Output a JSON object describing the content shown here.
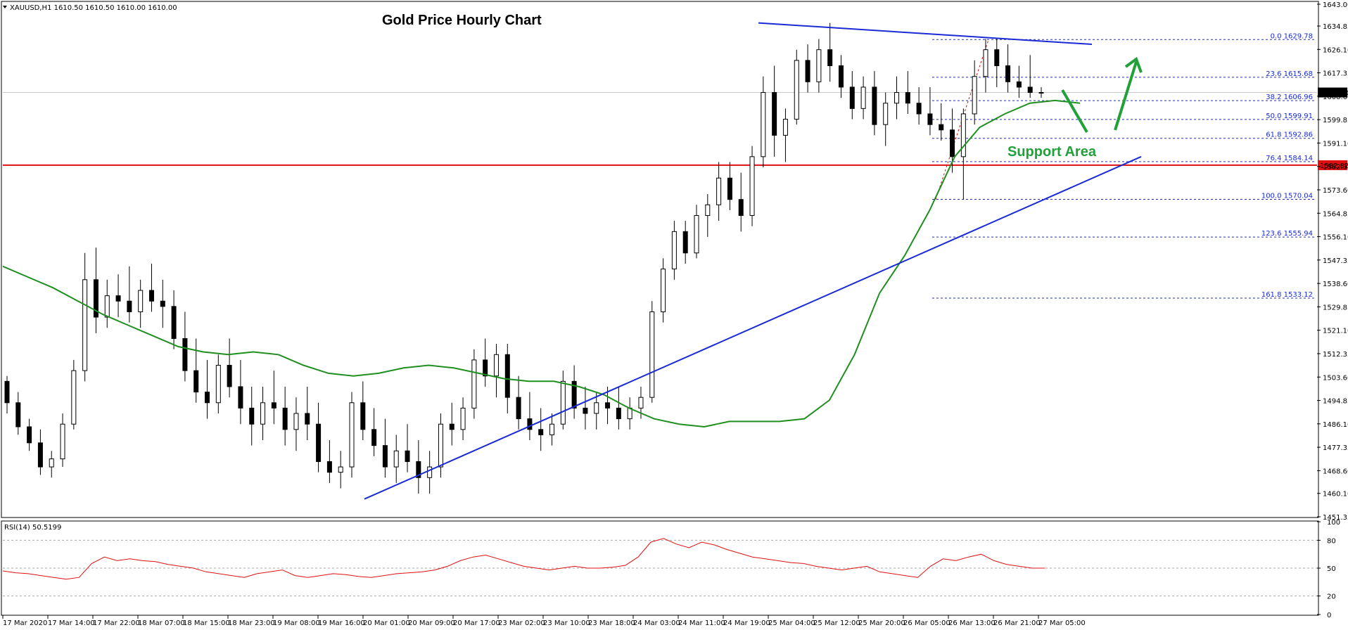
{
  "chart_data": {
    "type": "candlestick",
    "symbol_header": "XAUUSD,H1  1610.50 1610.50 1610.00 1610.00",
    "title": "Gold Price Hourly Chart",
    "annotation": "Support Area",
    "current_price_label": "1610.00",
    "resistance_label": "1582.82",
    "resistance_level": 1582.82,
    "ylim": [
      1451.35,
      1643.0
    ],
    "y_ticks": [
      "1643.00",
      "1634.85",
      "1626.10",
      "1617.35",
      "1608.60",
      "1599.85",
      "1591.10",
      "1582.35",
      "1573.60",
      "1564.85",
      "1556.10",
      "1547.35",
      "1538.60",
      "1529.85",
      "1521.10",
      "1512.35",
      "1503.60",
      "1494.85",
      "1486.10",
      "1477.35",
      "1468.60",
      "1460.10",
      "1451.35"
    ],
    "x_ticks": [
      "17 Mar 2020",
      "17 Mar 14:00",
      "17 Mar 22:00",
      "18 Mar 07:00",
      "18 Mar 15:00",
      "18 Mar 23:00",
      "19 Mar 08:00",
      "19 Mar 16:00",
      "20 Mar 01:00",
      "20 Mar 09:00",
      "20 Mar 17:00",
      "23 Mar 02:00",
      "23 Mar 10:00",
      "23 Mar 18:00",
      "24 Mar 03:00",
      "24 Mar 11:00",
      "24 Mar 19:00",
      "25 Mar 04:00",
      "25 Mar 12:00",
      "25 Mar 20:00",
      "26 Mar 05:00",
      "26 Mar 13:00",
      "26 Mar 21:00",
      "27 Mar 05:00"
    ],
    "fibonacci": [
      {
        "label": "0.0 1629.78",
        "level": 1629.78
      },
      {
        "label": "23.6 1615.68",
        "level": 1615.68
      },
      {
        "label": "38.2 1606.96",
        "level": 1606.96
      },
      {
        "label": "50.0 1599.91",
        "level": 1599.91
      },
      {
        "label": "61.8 1592.86",
        "level": 1592.86
      },
      {
        "label": "76.4 1584.14",
        "level": 1584.14
      },
      {
        "label": "100.0 1570.04",
        "level": 1570.04
      },
      {
        "label": "123.6 1555.94",
        "level": 1555.94
      },
      {
        "label": "161.8 1533.12",
        "level": 1533.12
      }
    ],
    "candles": [
      [
        1502,
        1504,
        1490,
        1494
      ],
      [
        1494,
        1498,
        1482,
        1485
      ],
      [
        1485,
        1488,
        1476,
        1479
      ],
      [
        1479,
        1484,
        1467,
        1470
      ],
      [
        1470,
        1476,
        1466,
        1473
      ],
      [
        1473,
        1490,
        1470,
        1486
      ],
      [
        1486,
        1510,
        1484,
        1506
      ],
      [
        1506,
        1550,
        1502,
        1540
      ],
      [
        1540,
        1552,
        1520,
        1526
      ],
      [
        1526,
        1540,
        1522,
        1534
      ],
      [
        1534,
        1542,
        1526,
        1532
      ],
      [
        1532,
        1545,
        1524,
        1528
      ],
      [
        1528,
        1540,
        1522,
        1536
      ],
      [
        1536,
        1546,
        1528,
        1532
      ],
      [
        1532,
        1540,
        1522,
        1530
      ],
      [
        1530,
        1536,
        1514,
        1518
      ],
      [
        1518,
        1528,
        1502,
        1506
      ],
      [
        1506,
        1518,
        1494,
        1498
      ],
      [
        1498,
        1510,
        1488,
        1494
      ],
      [
        1494,
        1512,
        1490,
        1508
      ],
      [
        1508,
        1518,
        1496,
        1500
      ],
      [
        1500,
        1510,
        1486,
        1492
      ],
      [
        1492,
        1500,
        1478,
        1486
      ],
      [
        1486,
        1500,
        1480,
        1494
      ],
      [
        1494,
        1506,
        1486,
        1492
      ],
      [
        1492,
        1500,
        1478,
        1484
      ],
      [
        1484,
        1496,
        1476,
        1490
      ],
      [
        1490,
        1500,
        1480,
        1486
      ],
      [
        1486,
        1494,
        1468,
        1472
      ],
      [
        1472,
        1480,
        1464,
        1468
      ],
      [
        1468,
        1476,
        1462,
        1470
      ],
      [
        1470,
        1498,
        1466,
        1494
      ],
      [
        1494,
        1502,
        1480,
        1484
      ],
      [
        1484,
        1492,
        1474,
        1478
      ],
      [
        1478,
        1488,
        1466,
        1470
      ],
      [
        1470,
        1482,
        1464,
        1476
      ],
      [
        1476,
        1486,
        1468,
        1472
      ],
      [
        1472,
        1480,
        1460,
        1466
      ],
      [
        1466,
        1476,
        1460,
        1470
      ],
      [
        1470,
        1490,
        1466,
        1486
      ],
      [
        1486,
        1494,
        1478,
        1484
      ],
      [
        1484,
        1496,
        1480,
        1492
      ],
      [
        1492,
        1514,
        1488,
        1510
      ],
      [
        1510,
        1518,
        1500,
        1504
      ],
      [
        1504,
        1516,
        1496,
        1512
      ],
      [
        1512,
        1516,
        1490,
        1496
      ],
      [
        1496,
        1504,
        1484,
        1488
      ],
      [
        1488,
        1498,
        1480,
        1484
      ],
      [
        1484,
        1492,
        1476,
        1482
      ],
      [
        1482,
        1490,
        1478,
        1486
      ],
      [
        1486,
        1506,
        1484,
        1502
      ],
      [
        1502,
        1508,
        1488,
        1492
      ],
      [
        1492,
        1500,
        1484,
        1490
      ],
      [
        1490,
        1498,
        1484,
        1494
      ],
      [
        1494,
        1500,
        1486,
        1492
      ],
      [
        1492,
        1500,
        1484,
        1488
      ],
      [
        1488,
        1496,
        1484,
        1492
      ],
      [
        1492,
        1500,
        1488,
        1496
      ],
      [
        1496,
        1532,
        1494,
        1528
      ],
      [
        1528,
        1548,
        1524,
        1544
      ],
      [
        1544,
        1562,
        1540,
        1558
      ],
      [
        1558,
        1562,
        1546,
        1550
      ],
      [
        1550,
        1568,
        1548,
        1564
      ],
      [
        1564,
        1572,
        1556,
        1568
      ],
      [
        1568,
        1584,
        1562,
        1578
      ],
      [
        1578,
        1584,
        1566,
        1570
      ],
      [
        1570,
        1580,
        1558,
        1564
      ],
      [
        1564,
        1590,
        1560,
        1586
      ],
      [
        1586,
        1616,
        1582,
        1610
      ],
      [
        1610,
        1620,
        1586,
        1594
      ],
      [
        1594,
        1604,
        1584,
        1600
      ],
      [
        1600,
        1626,
        1598,
        1622
      ],
      [
        1622,
        1628,
        1610,
        1614
      ],
      [
        1614,
        1630,
        1610,
        1626
      ],
      [
        1626,
        1636,
        1614,
        1620
      ],
      [
        1620,
        1624,
        1608,
        1612
      ],
      [
        1612,
        1618,
        1600,
        1604
      ],
      [
        1604,
        1616,
        1600,
        1612
      ],
      [
        1612,
        1618,
        1594,
        1598
      ],
      [
        1598,
        1610,
        1590,
        1606
      ],
      [
        1606,
        1616,
        1600,
        1610
      ],
      [
        1610,
        1618,
        1602,
        1606
      ],
      [
        1606,
        1612,
        1598,
        1602
      ],
      [
        1602,
        1612,
        1594,
        1598
      ],
      [
        1598,
        1606,
        1592,
        1596
      ],
      [
        1596,
        1604,
        1580,
        1586
      ],
      [
        1586,
        1604,
        1570,
        1602
      ],
      [
        1602,
        1622,
        1598,
        1616
      ],
      [
        1616,
        1630,
        1610,
        1626
      ],
      [
        1626,
        1630,
        1612,
        1620
      ],
      [
        1620,
        1628,
        1610,
        1614
      ],
      [
        1614,
        1620,
        1608,
        1612
      ],
      [
        1612,
        1624,
        1608,
        1610
      ],
      [
        1610,
        1612,
        1608,
        1610
      ]
    ],
    "ma": [
      1545,
      1541,
      1537,
      1532,
      1527,
      1523,
      1519,
      1515,
      1513,
      1512,
      1513,
      1512,
      1508,
      1505,
      1504,
      1505,
      1507,
      1508,
      1507,
      1505,
      1503,
      1502,
      1502,
      1500,
      1497,
      1492,
      1488,
      1486,
      1485,
      1487,
      1487,
      1487,
      1488,
      1495,
      1512,
      1535,
      1549,
      1566,
      1586,
      1597,
      1602,
      1606,
      1607,
      1606
    ],
    "rsi": {
      "label": "RSI(14) 50.5199",
      "levels": [
        80,
        50,
        20
      ],
      "ticks": [
        "100",
        "80",
        "50",
        "20",
        "0"
      ],
      "values": [
        47,
        45,
        44,
        42,
        40,
        38,
        40,
        55,
        62,
        58,
        60,
        58,
        57,
        54,
        52,
        50,
        46,
        44,
        42,
        40,
        44,
        46,
        48,
        42,
        40,
        42,
        44,
        43,
        41,
        40,
        42,
        44,
        45,
        46,
        48,
        52,
        58,
        62,
        64,
        60,
        56,
        52,
        50,
        48,
        50,
        52,
        50,
        50,
        51,
        53,
        62,
        78,
        82,
        76,
        72,
        78,
        75,
        70,
        66,
        62,
        60,
        58,
        56,
        55,
        52,
        50,
        48,
        50,
        52,
        46,
        44,
        42,
        40,
        52,
        60,
        58,
        62,
        65,
        58,
        54,
        52,
        50,
        50
      ]
    }
  }
}
